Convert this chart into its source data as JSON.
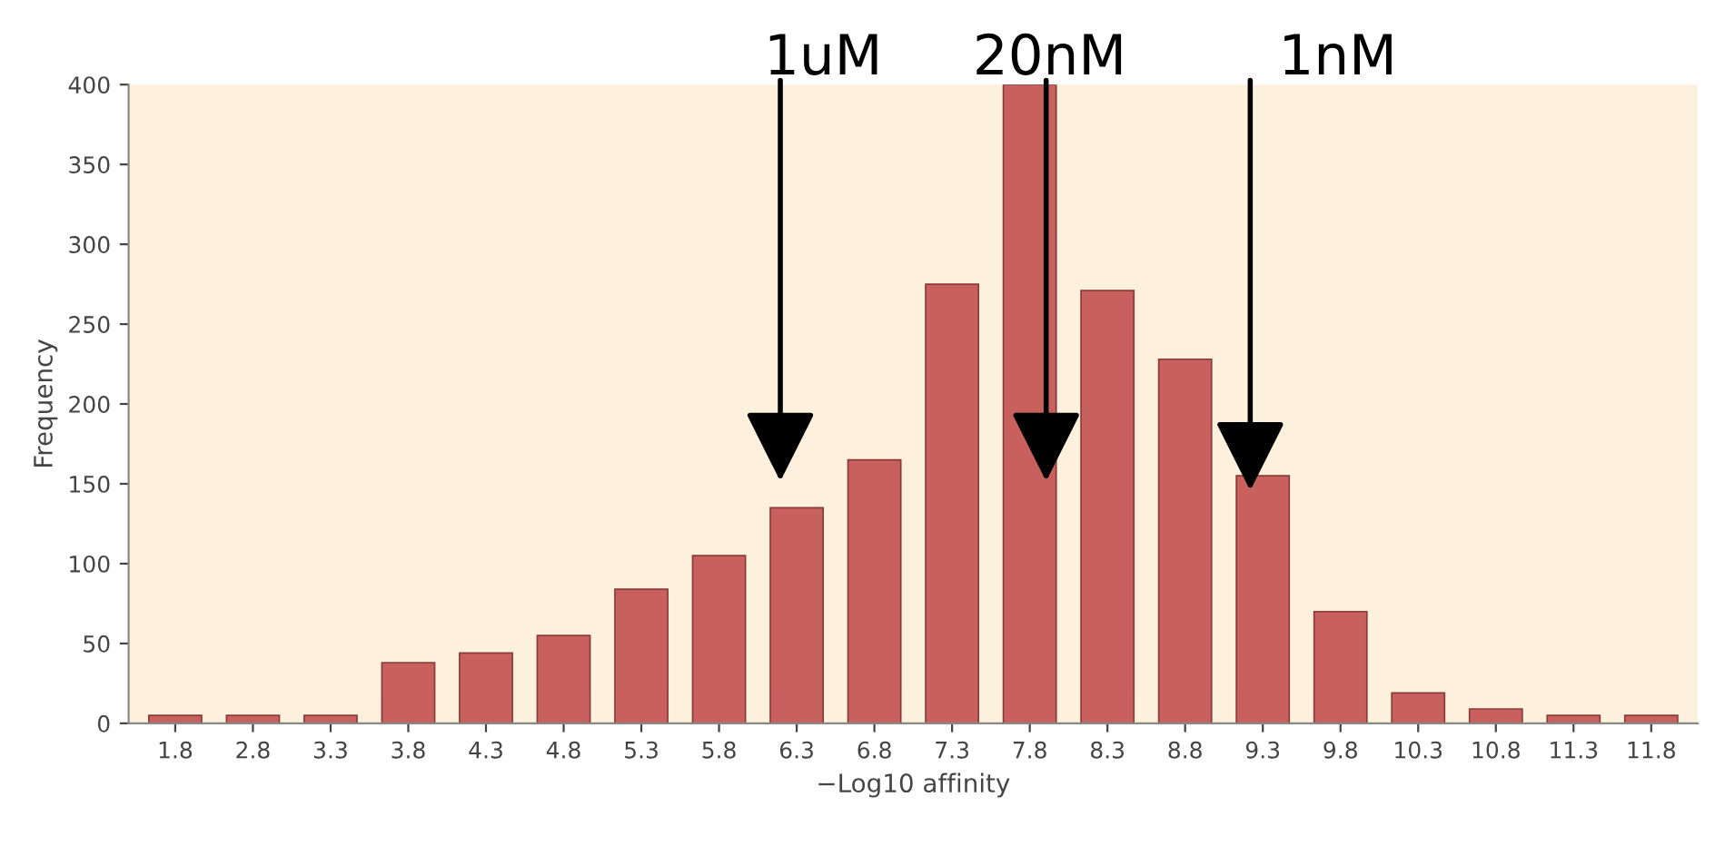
{
  "chart_data": {
    "type": "bar",
    "categories": [
      "1.8",
      "2.8",
      "3.3",
      "3.8",
      "4.3",
      "4.8",
      "5.3",
      "5.8",
      "6.3",
      "6.8",
      "7.3",
      "7.8",
      "8.3",
      "8.8",
      "9.3",
      "9.8",
      "10.3",
      "10.8",
      "11.3",
      "11.8"
    ],
    "values": [
      5,
      5,
      5,
      38,
      44,
      55,
      84,
      105,
      135,
      165,
      275,
      400,
      271,
      228,
      155,
      70,
      19,
      9,
      5,
      5
    ],
    "color": "#c8605e",
    "xlabel": "−Log10 affinity",
    "ylabel": "Frequency",
    "ylim": [
      0,
      400
    ],
    "yticks": [
      0,
      50,
      100,
      150,
      200,
      250,
      300,
      350,
      400
    ],
    "grid": false,
    "legend": false,
    "annotations": [
      "1uM",
      "20nM",
      "1nM"
    ]
  }
}
